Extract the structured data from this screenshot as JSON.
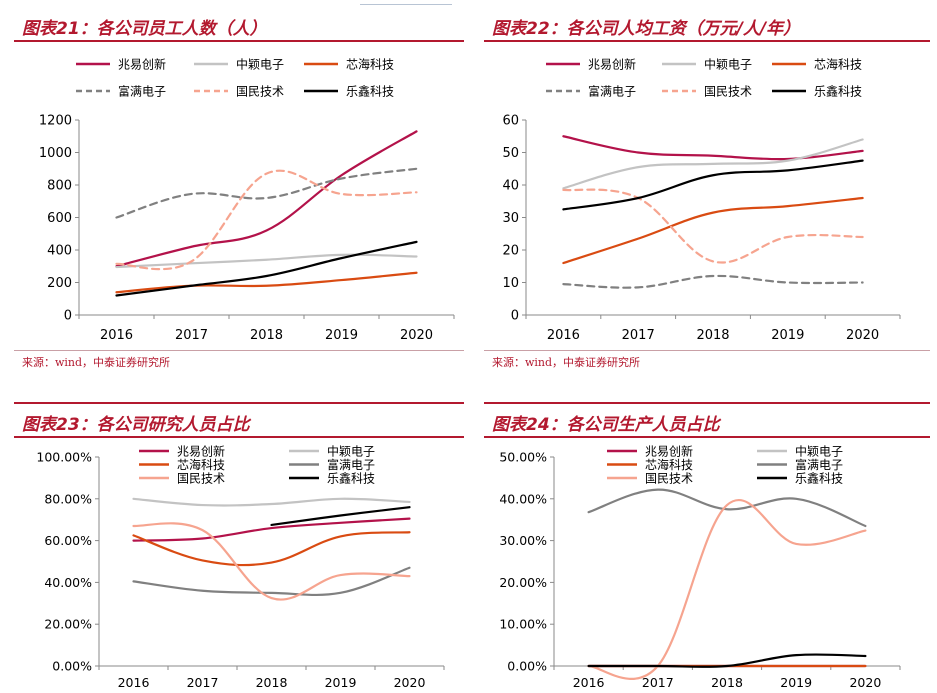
{
  "colors": {
    "zhaoyi": "#b3124a",
    "zhongying": "#c3c3c3",
    "xinhai": "#d94b12",
    "fuman": "#808080",
    "guomin": "#f6a48f",
    "lexin": "#000000",
    "accent": "#b3192f"
  },
  "panels": [
    {
      "title": "图表21：各公司员工人数（人）",
      "source": "来源：wind，中泰证券研究所"
    },
    {
      "title": "图表22：各公司人均工资（万元/人/年）",
      "source": "来源：wind，中泰证券研究所"
    },
    {
      "title": "图表23：各公司研究人员占比"
    },
    {
      "title": "图表24：各公司生产人员占比"
    }
  ],
  "chart_data": [
    {
      "type": "line",
      "title": "图表21：各公司员工人数（人）",
      "x": [
        "2016",
        "2017",
        "2018",
        "2019",
        "2020"
      ],
      "ylim": [
        0,
        1200
      ],
      "yticks": [
        "0",
        "200",
        "400",
        "600",
        "800",
        "1000",
        "1200"
      ],
      "grid": false,
      "legend_position": "top",
      "series": [
        {
          "name": "兆易创新",
          "color_key": "zhaoyi",
          "dash": "solid",
          "values": [
            300,
            420,
            520,
            860,
            1130
          ]
        },
        {
          "name": "中颖电子",
          "color_key": "zhongying",
          "dash": "solid",
          "values": [
            295,
            318,
            340,
            370,
            360
          ]
        },
        {
          "name": "芯海科技",
          "color_key": "xinhai",
          "dash": "solid",
          "values": [
            140,
            180,
            180,
            215,
            260
          ]
        },
        {
          "name": "富满电子",
          "color_key": "fuman",
          "dash": "dash",
          "values": [
            600,
            745,
            720,
            840,
            900
          ]
        },
        {
          "name": "国民技术",
          "color_key": "guomin",
          "dash": "dash",
          "values": [
            315,
            330,
            870,
            745,
            755
          ]
        },
        {
          "name": "乐鑫科技",
          "color_key": "lexin",
          "dash": "solid",
          "values": [
            120,
            180,
            240,
            350,
            450
          ]
        }
      ]
    },
    {
      "type": "line",
      "title": "图表22：各公司人均工资（万元/人/年）",
      "x": [
        "2016",
        "2017",
        "2018",
        "2019",
        "2020"
      ],
      "ylim": [
        0,
        60
      ],
      "yticks": [
        "0",
        "10",
        "20",
        "30",
        "40",
        "50",
        "60"
      ],
      "grid": false,
      "legend_position": "top",
      "series": [
        {
          "name": "兆易创新",
          "color_key": "zhaoyi",
          "dash": "solid",
          "values": [
            55,
            50,
            49,
            48,
            50.5
          ]
        },
        {
          "name": "中颖电子",
          "color_key": "zhongying",
          "dash": "solid",
          "values": [
            39,
            45.5,
            46.5,
            47.5,
            54
          ]
        },
        {
          "name": "芯海科技",
          "color_key": "xinhai",
          "dash": "solid",
          "values": [
            16,
            23.5,
            31.5,
            33.5,
            36
          ]
        },
        {
          "name": "富满电子",
          "color_key": "fuman",
          "dash": "dash",
          "values": [
            9.5,
            8.5,
            12,
            10,
            10
          ]
        },
        {
          "name": "国民技术",
          "color_key": "guomin",
          "dash": "dash",
          "values": [
            38.5,
            36,
            16.5,
            24,
            24
          ]
        },
        {
          "name": "乐鑫科技",
          "color_key": "lexin",
          "dash": "solid",
          "values": [
            32.5,
            36,
            43,
            44.5,
            47.5
          ]
        }
      ]
    },
    {
      "type": "line",
      "title": "图表23：各公司研究人员占比",
      "x": [
        "2016",
        "2017",
        "2018",
        "2019",
        "2020"
      ],
      "ylim": [
        0,
        100
      ],
      "yticks": [
        "0.00%",
        "20.00%",
        "40.00%",
        "60.00%",
        "80.00%",
        "100.00%"
      ],
      "grid": false,
      "legend_position": "top",
      "series": [
        {
          "name": "兆易创新",
          "color_key": "zhaoyi",
          "dash": "solid",
          "values": [
            60,
            61,
            66,
            68.5,
            70.5
          ]
        },
        {
          "name": "中颖电子",
          "color_key": "zhongying",
          "dash": "solid",
          "values": [
            80,
            77,
            77.5,
            80,
            78.5
          ]
        },
        {
          "name": "芯海科技",
          "color_key": "xinhai",
          "dash": "solid",
          "values": [
            62.5,
            50.5,
            49.5,
            62,
            64
          ]
        },
        {
          "name": "富满电子",
          "color_key": "fuman",
          "dash": "solid",
          "values": [
            40.5,
            36,
            35,
            35,
            47
          ]
        },
        {
          "name": "国民技术",
          "color_key": "guomin",
          "dash": "solid",
          "values": [
            67,
            65,
            32.5,
            43.5,
            43
          ]
        },
        {
          "name": "乐鑫科技",
          "color_key": "lexin",
          "dash": "solid",
          "values": [
            null,
            null,
            67.5,
            72,
            76
          ]
        }
      ]
    },
    {
      "type": "line",
      "title": "图表24：各公司生产人员占比",
      "x": [
        "2016",
        "2017",
        "2018",
        "2019",
        "2020"
      ],
      "ylim": [
        0,
        50
      ],
      "yticks": [
        "0.00%",
        "10.00%",
        "20.00%",
        "30.00%",
        "40.00%",
        "50.00%"
      ],
      "grid": false,
      "legend_position": "top",
      "series": [
        {
          "name": "兆易创新",
          "color_key": "zhaoyi",
          "dash": "solid",
          "values": [
            0,
            0,
            0,
            0,
            0
          ]
        },
        {
          "name": "中颖电子",
          "color_key": "zhongying",
          "dash": "solid",
          "values": [
            0,
            0,
            0,
            0,
            0
          ]
        },
        {
          "name": "芯海科技",
          "color_key": "xinhai",
          "dash": "solid",
          "values": [
            0,
            0,
            0,
            0,
            0
          ]
        },
        {
          "name": "富满电子",
          "color_key": "fuman",
          "dash": "solid",
          "values": [
            36.8,
            42.2,
            37.5,
            40,
            33.5
          ]
        },
        {
          "name": "国民技术",
          "color_key": "guomin",
          "dash": "solid",
          "values": [
            0,
            0,
            38.5,
            29.2,
            32.4
          ]
        },
        {
          "name": "乐鑫科技",
          "color_key": "lexin",
          "dash": "solid",
          "values": [
            0,
            0,
            0,
            2.6,
            2.4
          ]
        }
      ]
    }
  ]
}
